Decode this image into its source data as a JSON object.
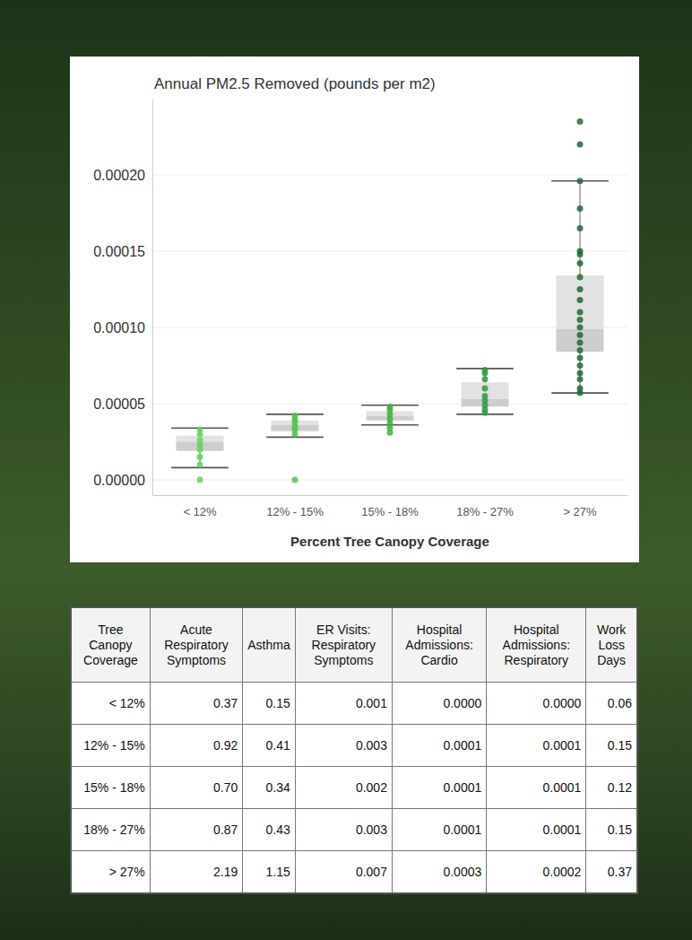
{
  "chart_data": {
    "type": "box",
    "title": "Annual PM2.5 Removed (pounds per m2)",
    "x_label": "Percent Tree Canopy Coverage",
    "categories": [
      "< 12%",
      "12% - 15%",
      "15% - 18%",
      "18% - 27%",
      "> 27%"
    ],
    "boxes": [
      {
        "low": 8e-06,
        "q1": 1.9e-05,
        "median": 2.5e-05,
        "q3": 2.9e-05,
        "high": 3.4e-05,
        "points": [
          0.0,
          1e-05,
          1.5e-05,
          2e-05,
          2.3e-05,
          2.6e-05,
          3e-05,
          3.3e-05
        ]
      },
      {
        "low": 2.8e-05,
        "q1": 3.2e-05,
        "median": 3.6e-05,
        "q3": 3.9e-05,
        "high": 4.3e-05,
        "points": [
          0.0,
          3e-05,
          3.3e-05,
          3.5e-05,
          3.8e-05,
          4e-05,
          4.2e-05
        ]
      },
      {
        "low": 3.6e-05,
        "q1": 3.9e-05,
        "median": 4.2e-05,
        "q3": 4.5e-05,
        "high": 4.9e-05,
        "points": [
          3.1e-05,
          3.4e-05,
          3.7e-05,
          4e-05,
          4.3e-05,
          4.6e-05,
          4.8e-05
        ]
      },
      {
        "low": 4.3e-05,
        "q1": 4.8e-05,
        "median": 5.3e-05,
        "q3": 6.4e-05,
        "high": 7.3e-05,
        "points": [
          4.4e-05,
          4.6e-05,
          4.9e-05,
          5.2e-05,
          5.5e-05,
          6e-05,
          6.6e-05,
          7e-05,
          7.2e-05
        ]
      },
      {
        "low": 5.7e-05,
        "q1": 8.4e-05,
        "median": 9.9e-05,
        "q3": 0.000134,
        "high": 0.000196,
        "points": [
          5.7e-05,
          6e-05,
          6.6e-05,
          7e-05,
          7.5e-05,
          8e-05,
          8.5e-05,
          9e-05,
          9.5e-05,
          0.0001,
          0.000105,
          0.00011,
          0.000118,
          0.000125,
          0.000133,
          0.000142,
          0.000148,
          0.00015,
          0.000165,
          0.000178,
          0.000196,
          0.00022,
          0.000235
        ]
      }
    ],
    "colors": [
      "#5fd35f",
      "#4cc44c",
      "#3cb43c",
      "#2e9a44",
      "#1e6a34"
    ],
    "ylim": [
      -1e-05,
      0.00025
    ],
    "yticks": [
      {
        "value": 0,
        "label": "0.00000"
      },
      5e-05,
      {
        "value": 0.0001,
        "label": "0.00010"
      },
      0.00015,
      {
        "value": 0.0002,
        "label": "0.00020"
      }
    ],
    "grid": true
  },
  "table": {
    "header": [
      "Tree Canopy Coverage",
      "Acute Respiratory Symptoms",
      "Asthma",
      "ER Visits: Respiratory Symptoms",
      "Hospital Admissions: Cardio",
      "Hospital Admissions: Respiratory",
      "Work Loss Days"
    ],
    "rows": [
      [
        "< 12%",
        "0.37",
        "0.15",
        "0.001",
        "0.0000",
        "0.0000",
        "0.06"
      ],
      [
        "12% - 15%",
        "0.92",
        "0.41",
        "0.003",
        "0.0001",
        "0.0001",
        "0.15"
      ],
      [
        "15% - 18%",
        "0.70",
        "0.34",
        "0.002",
        "0.0001",
        "0.0001",
        "0.12"
      ],
      [
        "18% - 27%",
        "0.87",
        "0.43",
        "0.003",
        "0.0001",
        "0.0001",
        "0.15"
      ],
      [
        "> 27%",
        "2.19",
        "1.15",
        "0.007",
        "0.0003",
        "0.0002",
        "0.37"
      ]
    ]
  }
}
